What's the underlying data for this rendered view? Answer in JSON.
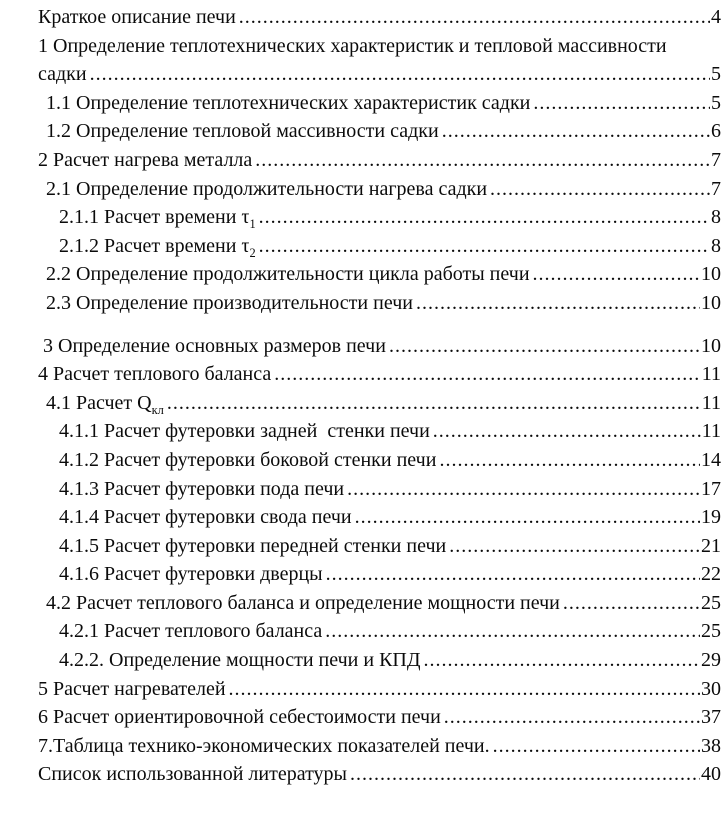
{
  "colors": {
    "background": "#ffffff",
    "text": "#0b0b0b"
  },
  "toc": {
    "entries": [
      {
        "level": "0",
        "parts": [
          {
            "t": "Краткое описание печи"
          }
        ],
        "page": "4"
      },
      {
        "level": "0",
        "parts": [
          {
            "t": "1 Определение теплотехнических характеристик и тепловой массивности"
          }
        ],
        "page": null
      },
      {
        "level": "0",
        "parts": [
          {
            "t": "садки"
          }
        ],
        "page": "5"
      },
      {
        "level": "1",
        "parts": [
          {
            "t": "1.1 Определение теплотехнических характеристик садки"
          }
        ],
        "page": "5"
      },
      {
        "level": "1",
        "parts": [
          {
            "t": "1.2 Определение тепловой массивности садки"
          }
        ],
        "page": "6"
      },
      {
        "level": "0",
        "parts": [
          {
            "t": "2 Расчет нагрева металла"
          }
        ],
        "page": "7"
      },
      {
        "level": "1",
        "parts": [
          {
            "t": "2.1 Определение продолжительности нагрева садки"
          }
        ],
        "page": "7"
      },
      {
        "level": "2",
        "parts": [
          {
            "t": "2.1.1 Расчет времени τ"
          },
          {
            "sub": "1"
          }
        ],
        "page": "8"
      },
      {
        "level": "2",
        "parts": [
          {
            "t": "2.1.2 Расчет времени τ"
          },
          {
            "sub": "2"
          }
        ],
        "page": "8"
      },
      {
        "level": "1",
        "parts": [
          {
            "t": "2.2 Определение продолжительности цикла работы печи"
          }
        ],
        "page": "10"
      },
      {
        "level": "1",
        "parts": [
          {
            "t": "2.3 Определение производительности печи"
          }
        ],
        "page": "10"
      },
      {
        "level": "0s",
        "gap_before": true,
        "parts": [
          {
            "t": "3 Определение основных размеров печи"
          }
        ],
        "page": "10"
      },
      {
        "level": "0",
        "parts": [
          {
            "t": "4 Расчет теплового баланса"
          }
        ],
        "page": "11"
      },
      {
        "level": "1",
        "parts": [
          {
            "t": "4.1 Расчет Q"
          },
          {
            "sub": "кл"
          }
        ],
        "page": "11"
      },
      {
        "level": "2",
        "parts": [
          {
            "t": "4.1.1 Расчет футеровки задней  стенки печи"
          }
        ],
        "page": "11"
      },
      {
        "level": "2",
        "parts": [
          {
            "t": "4.1.2 Расчет футеровки боковой стенки печи"
          }
        ],
        "page": "14"
      },
      {
        "level": "2",
        "parts": [
          {
            "t": "4.1.3 Расчет футеровки пода печи"
          }
        ],
        "page": "17"
      },
      {
        "level": "2",
        "parts": [
          {
            "t": "4.1.4 Расчет футеровки свода печи"
          }
        ],
        "page": "19"
      },
      {
        "level": "2",
        "parts": [
          {
            "t": "4.1.5 Расчет футеровки передней стенки печи"
          }
        ],
        "page": "21"
      },
      {
        "level": "2",
        "parts": [
          {
            "t": "4.1.6 Расчет футеровки дверцы"
          }
        ],
        "page": "22"
      },
      {
        "level": "1",
        "parts": [
          {
            "t": "4.2 Расчет теплового баланса и определение мощности печи"
          }
        ],
        "page": "25"
      },
      {
        "level": "2",
        "parts": [
          {
            "t": "4.2.1 Расчет теплового баланса"
          }
        ],
        "page": "25"
      },
      {
        "level": "2",
        "parts": [
          {
            "t": "4.2.2. Определение мощности печи и КПД"
          }
        ],
        "page": "29"
      },
      {
        "level": "0",
        "parts": [
          {
            "t": "5 Расчет нагревателей"
          }
        ],
        "page": "30"
      },
      {
        "level": "0",
        "parts": [
          {
            "t": "6 Расчет ориентировочной себестоимости печи"
          }
        ],
        "page": "37"
      },
      {
        "level": "0",
        "parts": [
          {
            "t": "7.Таблица технико-экономических показателей печи."
          }
        ],
        "page": "38"
      },
      {
        "level": "0",
        "parts": [
          {
            "t": "Список использованной литературы"
          }
        ],
        "page": "40"
      }
    ]
  }
}
